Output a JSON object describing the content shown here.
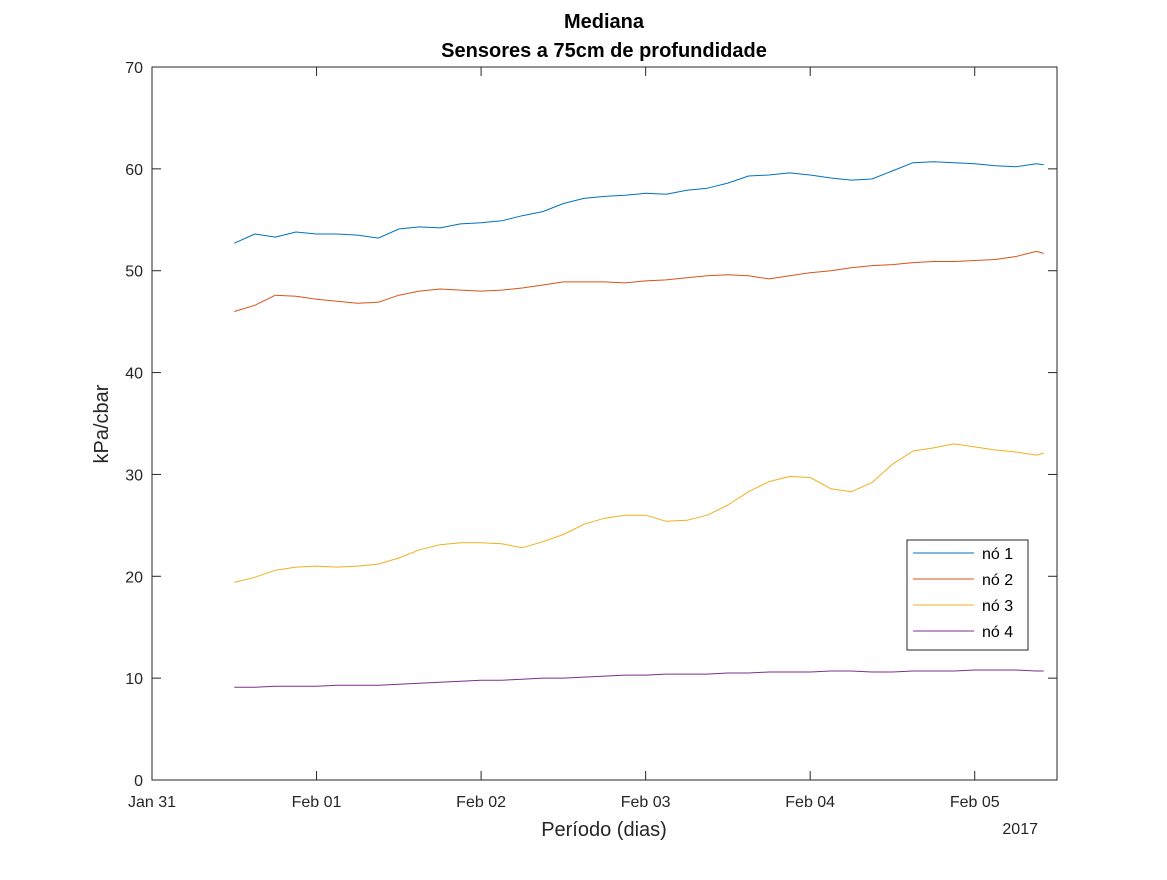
{
  "chart_data": {
    "type": "line",
    "title": "Mediana",
    "subtitle": "Sensores a 75cm de profundidade",
    "xlabel": "Período (dias)",
    "ylabel": "kPa/cbar",
    "x_year_label": "2017",
    "x_tick_labels": [
      "Jan 31",
      "Feb 01",
      "Feb 02",
      "Feb 03",
      "Feb 04",
      "Feb 05"
    ],
    "x_tick_values": [
      0,
      1,
      2,
      3,
      4,
      5
    ],
    "xlim": [
      0,
      5.5
    ],
    "ylim": [
      0,
      70
    ],
    "y_ticks": [
      0,
      10,
      20,
      30,
      40,
      50,
      60,
      70
    ],
    "grid": false,
    "legend_position": "right",
    "x": [
      0.5,
      0.625,
      0.75,
      0.875,
      1.0,
      1.125,
      1.25,
      1.375,
      1.5,
      1.625,
      1.75,
      1.875,
      2.0,
      2.125,
      2.25,
      2.375,
      2.5,
      2.625,
      2.75,
      2.875,
      3.0,
      3.125,
      3.25,
      3.375,
      3.5,
      3.625,
      3.75,
      3.875,
      4.0,
      4.125,
      4.25,
      4.375,
      4.5,
      4.625,
      4.75,
      4.875,
      5.0,
      5.125,
      5.25,
      5.375,
      5.42
    ],
    "series": [
      {
        "name": "nó 1",
        "color": "#0072BD",
        "values": [
          52.7,
          53.6,
          53.3,
          53.8,
          53.6,
          53.6,
          53.5,
          53.2,
          54.1,
          54.3,
          54.2,
          54.6,
          54.7,
          54.9,
          55.4,
          55.8,
          56.6,
          57.1,
          57.3,
          57.4,
          57.6,
          57.5,
          57.9,
          58.1,
          58.6,
          59.3,
          59.4,
          59.6,
          59.4,
          59.1,
          58.9,
          59.0,
          59.8,
          60.6,
          60.7,
          60.6,
          60.5,
          60.3,
          60.2,
          60.5,
          60.4
        ]
      },
      {
        "name": "nó 2",
        "color": "#D95319",
        "values": [
          46.0,
          46.6,
          47.6,
          47.5,
          47.2,
          47.0,
          46.8,
          46.9,
          47.6,
          48.0,
          48.2,
          48.1,
          48.0,
          48.1,
          48.3,
          48.6,
          48.9,
          48.9,
          48.9,
          48.8,
          49.0,
          49.1,
          49.3,
          49.5,
          49.6,
          49.5,
          49.2,
          49.5,
          49.8,
          50.0,
          50.3,
          50.5,
          50.6,
          50.8,
          50.9,
          50.9,
          51.0,
          51.1,
          51.4,
          51.9,
          51.7
        ]
      },
      {
        "name": "nó 3",
        "color": "#EDB120",
        "values": [
          19.4,
          19.9,
          20.6,
          20.9,
          21.0,
          20.9,
          21.0,
          21.2,
          21.8,
          22.6,
          23.1,
          23.3,
          23.3,
          23.2,
          22.8,
          23.4,
          24.1,
          25.1,
          25.7,
          26.0,
          26.0,
          25.4,
          25.5,
          26.0,
          27.0,
          28.3,
          29.3,
          29.8,
          29.7,
          28.6,
          28.3,
          29.2,
          31.0,
          32.3,
          32.6,
          33.0,
          32.7,
          32.4,
          32.2,
          31.9,
          32.1
        ]
      },
      {
        "name": "nó 4",
        "color": "#7E2F8E",
        "values": [
          9.1,
          9.1,
          9.2,
          9.2,
          9.2,
          9.3,
          9.3,
          9.3,
          9.4,
          9.5,
          9.6,
          9.7,
          9.8,
          9.8,
          9.9,
          10.0,
          10.0,
          10.1,
          10.2,
          10.3,
          10.3,
          10.4,
          10.4,
          10.4,
          10.5,
          10.5,
          10.6,
          10.6,
          10.6,
          10.7,
          10.7,
          10.6,
          10.6,
          10.7,
          10.7,
          10.7,
          10.8,
          10.8,
          10.8,
          10.7,
          10.7
        ]
      }
    ]
  }
}
